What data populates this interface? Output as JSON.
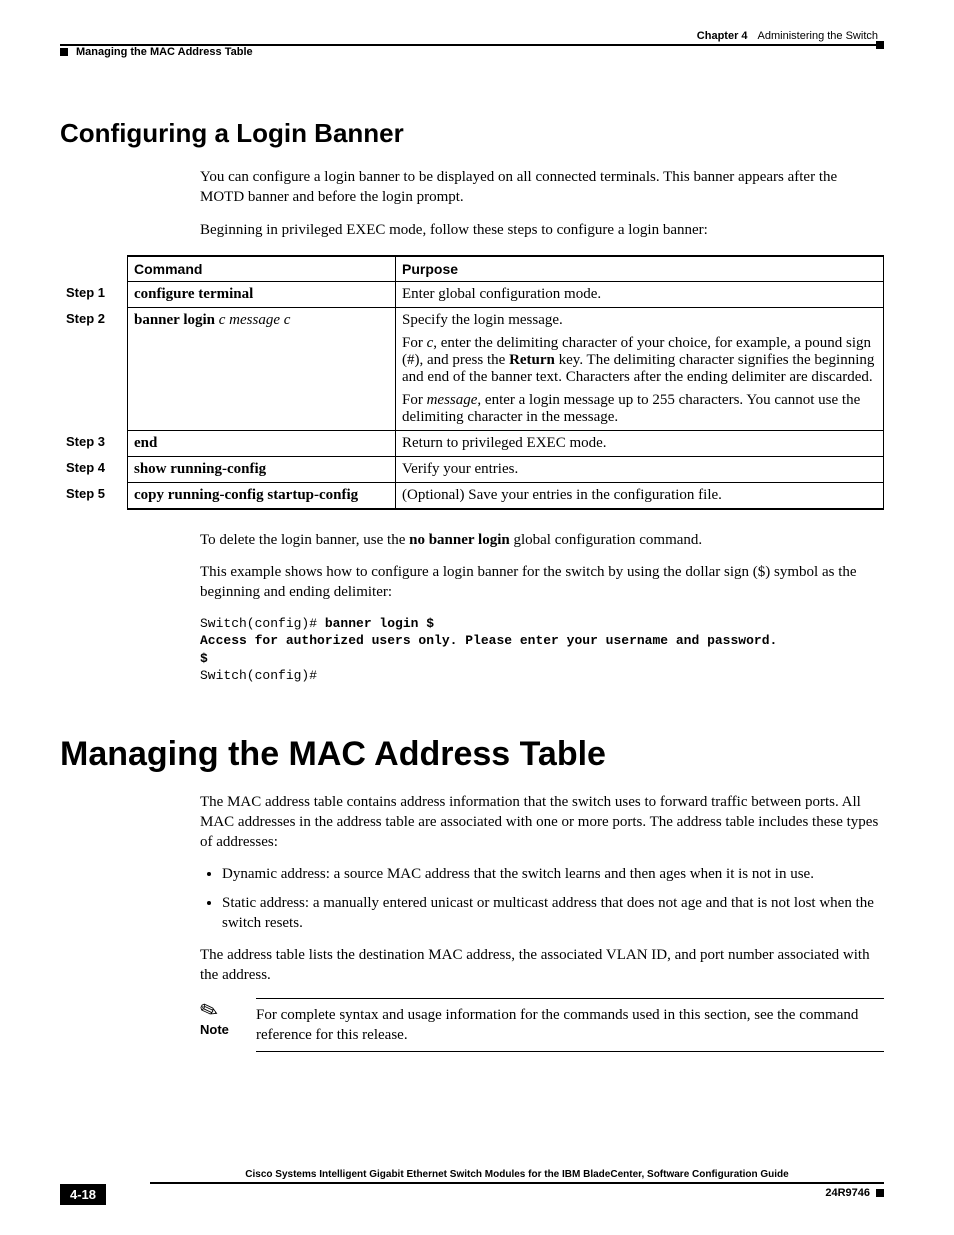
{
  "header": {
    "chapter": "Chapter 4",
    "chapter_title": "Administering the Switch",
    "section": "Managing the MAC Address Table"
  },
  "s1": {
    "title": "Configuring a Login Banner",
    "p1": "You can configure a login banner to be displayed on all connected terminals. This banner appears after the MOTD banner and before the login prompt.",
    "p2": "Beginning in privileged EXEC mode, follow these steps to configure a login banner:"
  },
  "table": {
    "h_cmd": "Command",
    "h_purp": "Purpose",
    "rows": {
      "r1": {
        "step": "Step 1",
        "cmd_b": "configure terminal",
        "purp": "Enter global configuration mode."
      },
      "r2": {
        "step": "Step 2",
        "cmd_b": "banner login ",
        "cmd_i": "c message c",
        "p1": "Specify the login message.",
        "p2a": "For ",
        "p2i1": "c",
        "p2b": ", enter the delimiting character of your choice, for example, a pound sign (#), and press the ",
        "p2bold": "Return",
        "p2c": " key. The delimiting character signifies the beginning and end of the banner text. Characters after the ending delimiter are discarded.",
        "p3a": "For ",
        "p3i": "message",
        "p3b": ", enter a login message up to 255 characters. You cannot use the delimiting character in the message."
      },
      "r3": {
        "step": "Step 3",
        "cmd_b": "end",
        "purp": "Return to privileged EXEC mode."
      },
      "r4": {
        "step": "Step 4",
        "cmd_b": "show running-config",
        "purp": "Verify your entries."
      },
      "r5": {
        "step": "Step 5",
        "cmd_b": "copy running-config startup-config",
        "purp": "(Optional) Save your entries in the configuration file."
      }
    }
  },
  "after": {
    "p1a": "To delete the login banner, use the ",
    "p1b": "no banner login",
    "p1c": " global configuration command.",
    "p2": "This example shows how to configure a login banner for the switch by using the dollar sign ($) symbol as the beginning and ending delimiter:",
    "code_l1a": "Switch(config)# ",
    "code_l1b": "banner login $",
    "code_l2": "Access for authorized users only. Please enter your username and password.",
    "code_l3": "$",
    "code_l4": "Switch(config)#"
  },
  "s2": {
    "title": "Managing the MAC Address Table",
    "p1": "The MAC address table contains address information that the switch uses to forward traffic between ports. All MAC addresses in the address table are associated with one or more ports. The address table includes these types of addresses:",
    "li1": "Dynamic address: a source MAC address that the switch learns and then ages when it is not in use.",
    "li2": "Static address: a manually entered unicast or multicast address that does not age and that is not lost when the switch resets.",
    "p2": "The address table lists the destination MAC address, the associated VLAN ID, and port number associated with the address."
  },
  "note": {
    "label": "Note",
    "text": "For complete syntax and usage information for the commands used in this section, see the command reference for this release."
  },
  "footer": {
    "title": "Cisco Systems Intelligent Gigabit Ethernet Switch Modules for the IBM BladeCenter, Software Configuration Guide",
    "page": "4-18",
    "doc": "24R9746"
  }
}
